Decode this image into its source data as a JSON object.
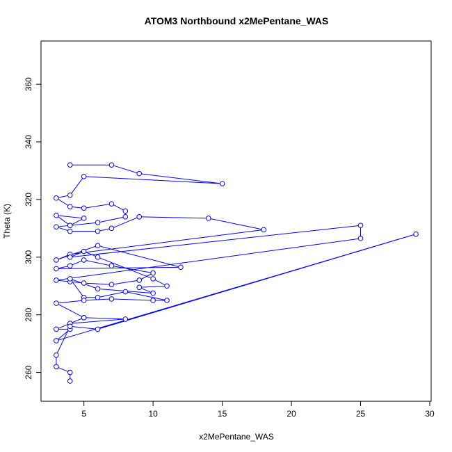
{
  "chart_data": {
    "type": "line",
    "title": "ATOM3 Northbound x2MePentane_WAS",
    "xlabel": "x2MePentane_WAS",
    "ylabel": "Theta (K)",
    "xlim": [
      1.9,
      30.1
    ],
    "ylim": [
      250,
      375
    ],
    "x_ticks": [
      5,
      10,
      15,
      20,
      25,
      30
    ],
    "y_ticks": [
      260,
      280,
      300,
      320,
      340,
      360
    ],
    "grid": false,
    "legend": "none",
    "series_color": "#0000FF",
    "marker": "open-circle",
    "series": [
      {
        "x": [
          4,
          7,
          9,
          15,
          5,
          4,
          3,
          4,
          5,
          7,
          8,
          8,
          6,
          4,
          3,
          5,
          4,
          3,
          4,
          6,
          7,
          9,
          14,
          18,
          4,
          3,
          6,
          12,
          3,
          4,
          5,
          7,
          10,
          9,
          7,
          5,
          4,
          3,
          25,
          25,
          4,
          5,
          6,
          10,
          11,
          9,
          10,
          6,
          4,
          5,
          6,
          8,
          11,
          10,
          7,
          5,
          3,
          5,
          8,
          4,
          5,
          3,
          4,
          3,
          29,
          6,
          4,
          3,
          3,
          4,
          4
        ],
        "y": [
          332,
          332,
          329,
          325.5,
          328,
          321.5,
          320.5,
          317.5,
          317,
          318.5,
          316,
          314,
          312,
          311,
          314.5,
          313.5,
          311,
          310.5,
          309,
          309,
          310,
          314,
          313.5,
          309.5,
          301,
          299,
          304,
          296.5,
          296,
          297,
          299,
          297,
          294.5,
          292,
          290.5,
          291,
          291.5,
          292,
          306.5,
          311,
          300,
          302,
          300,
          292.5,
          290,
          289.5,
          287.5,
          289,
          292.5,
          286,
          286,
          288,
          285,
          285,
          285.5,
          285,
          284,
          279,
          278.5,
          277,
          279,
          275,
          275,
          271,
          308,
          275,
          276,
          266,
          262,
          260,
          257
        ]
      }
    ]
  }
}
